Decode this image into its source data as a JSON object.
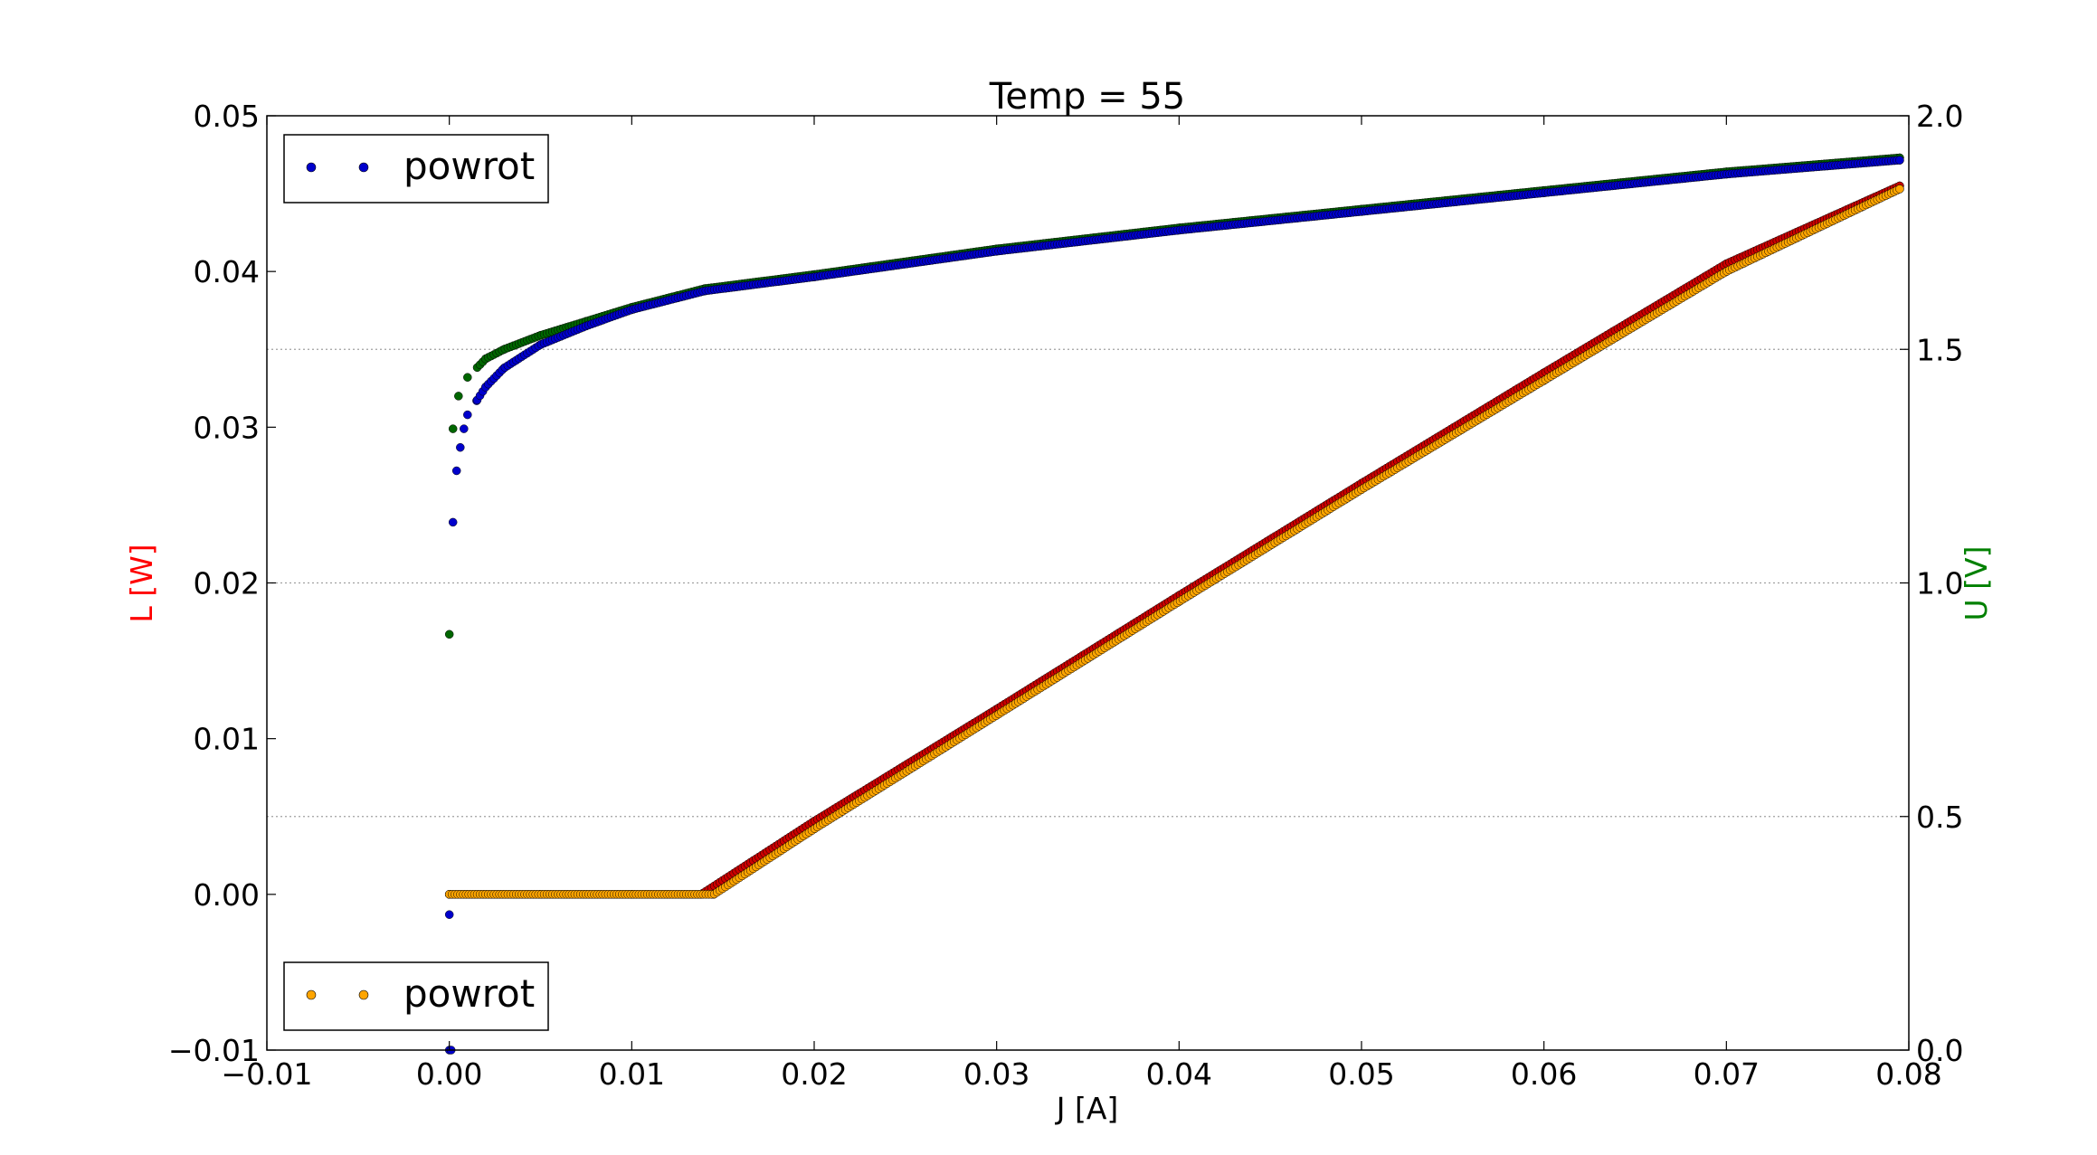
{
  "chart_data": {
    "type": "scatter",
    "title": "Temp = 55",
    "xlabel": "J [A]",
    "ylabel_left": "L [W]",
    "ylabel_right": "U [V]",
    "xlim": [
      -0.01,
      0.08
    ],
    "ylim_left": [
      -0.01,
      0.05
    ],
    "ylim_right": [
      0.0,
      2.0
    ],
    "xticks": [
      "−0.01",
      "0.00",
      "0.01",
      "0.02",
      "0.03",
      "0.04",
      "0.05",
      "0.06",
      "0.07",
      "0.08"
    ],
    "yticks_left": [
      "−0.01",
      "0.00",
      "0.01",
      "0.02",
      "0.03",
      "0.04",
      "0.05"
    ],
    "yticks_right": [
      "0.0",
      "0.5",
      "1.0",
      "1.5",
      "2.0"
    ],
    "grid": "horizontal dotted lines at right-axis ticks",
    "colors": {
      "left_label": "#ff0000",
      "right_label": "#008000",
      "voltage_a": "#0000cc",
      "voltage_b": "#006600",
      "power_a": "#cc0000",
      "power_b": "#ffa500"
    },
    "legends": [
      {
        "position": "upper-left",
        "label": "powrot",
        "color": "#0000cc"
      },
      {
        "position": "lower-left",
        "label": "powrot",
        "color": "#ffa500"
      }
    ],
    "series": [
      {
        "axis": "right",
        "color": "#006600",
        "x": [
          0.0,
          0.0002,
          0.0005,
          0.001,
          0.002,
          0.003,
          0.005,
          0.0075,
          0.01,
          0.0125,
          0.014,
          0.02,
          0.03,
          0.04,
          0.05,
          0.06,
          0.07,
          0.0795
        ],
        "values": [
          0.89,
          1.33,
          1.4,
          1.44,
          1.48,
          1.5,
          1.53,
          1.56,
          1.59,
          1.615,
          1.63,
          1.66,
          1.715,
          1.76,
          1.8,
          1.84,
          1.88,
          1.91
        ]
      },
      {
        "axis": "right",
        "color": "#0000cc",
        "x": [
          0.0,
          0.0002,
          0.0004,
          0.0006,
          0.0008,
          0.001,
          0.0015,
          0.002,
          0.003,
          0.005,
          0.0075,
          0.01,
          0.0125,
          0.014,
          0.02,
          0.03,
          0.04,
          0.05,
          0.06,
          0.07,
          0.0795
        ],
        "values": [
          0.0,
          1.13,
          1.24,
          1.29,
          1.33,
          1.36,
          1.39,
          1.42,
          1.46,
          1.51,
          1.55,
          1.585,
          1.61,
          1.625,
          1.655,
          1.71,
          1.755,
          1.795,
          1.835,
          1.875,
          1.905
        ]
      },
      {
        "axis": "left",
        "color": "#cc0000",
        "x": [
          0.0,
          0.005,
          0.01,
          0.0138,
          0.02,
          0.03,
          0.04,
          0.05,
          0.06,
          0.07,
          0.0795
        ],
        "values": [
          0.0,
          0.0,
          0.0,
          0.0,
          0.0047,
          0.0119,
          0.0192,
          0.0264,
          0.0335,
          0.0405,
          0.0455
        ]
      },
      {
        "axis": "left",
        "color": "#ffa500",
        "x": [
          0.0,
          0.005,
          0.01,
          0.0145,
          0.02,
          0.03,
          0.04,
          0.05,
          0.06,
          0.07,
          0.0795
        ],
        "values": [
          0.0,
          0.0,
          0.0,
          0.0,
          0.0042,
          0.0115,
          0.0188,
          0.026,
          0.033,
          0.04,
          0.0453
        ]
      }
    ],
    "outliers": [
      {
        "axis": "right",
        "color": "#0000cc",
        "x": 0.0001,
        "y": 0.0
      },
      {
        "axis": "right",
        "color": "#0000cc",
        "x": 0.0,
        "y": 0.29
      }
    ]
  }
}
